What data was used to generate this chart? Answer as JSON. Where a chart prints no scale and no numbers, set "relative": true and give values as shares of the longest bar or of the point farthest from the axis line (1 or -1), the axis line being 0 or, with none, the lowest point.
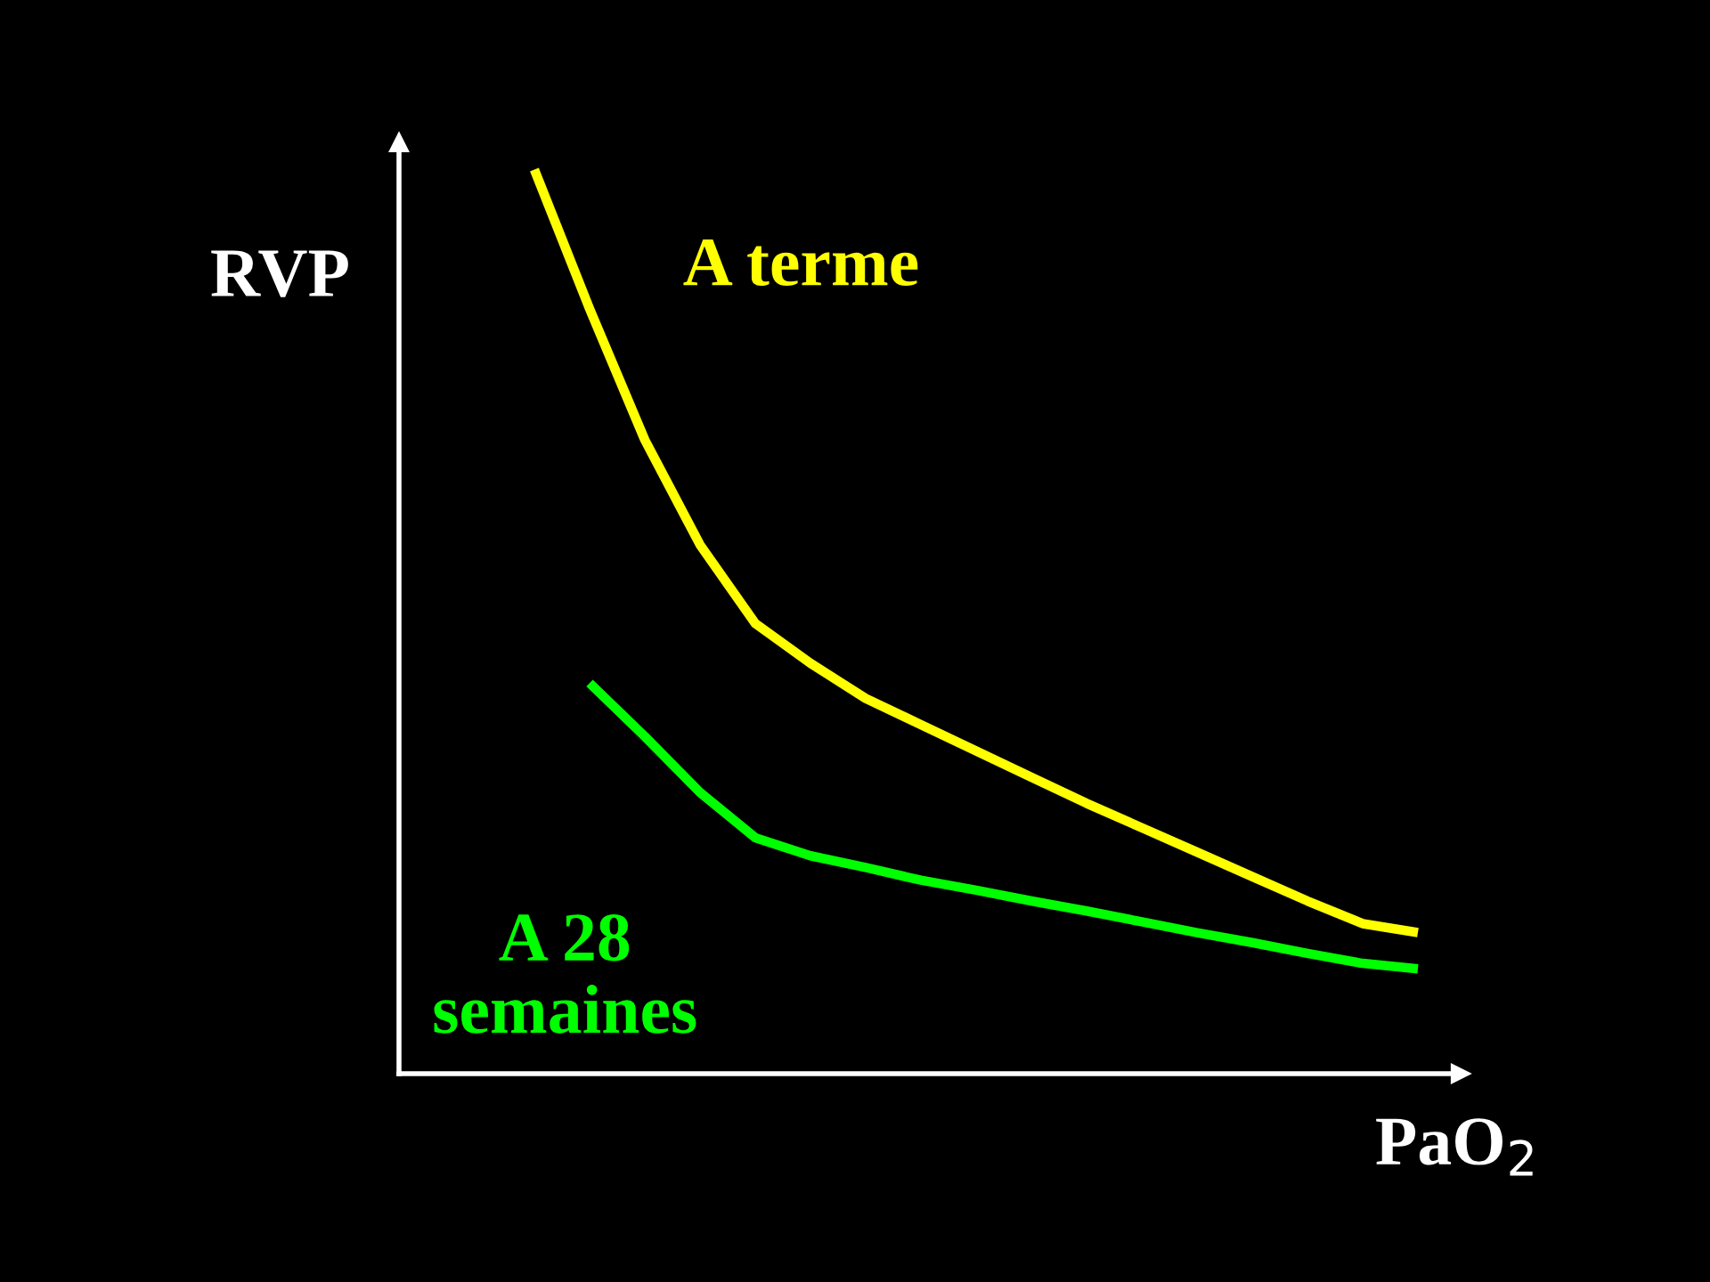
{
  "chart_data": {
    "type": "line",
    "relative": true,
    "xlabel": "PaO$_{2}$",
    "ylabel": "RVP",
    "legend": false,
    "marker": "none",
    "line_style": "solid",
    "categories": [
      null,
      null,
      null,
      null,
      null,
      null,
      null,
      null,
      null,
      null,
      null,
      null,
      null,
      null,
      null,
      null,
      null
    ],
    "series": [
      {
        "name": "A terme",
        "color": "#ffff00",
        "values": [
          1.0,
          0.846,
          0.701,
          0.585,
          0.498,
          0.454,
          0.415,
          0.386,
          0.357,
          0.328,
          0.299,
          0.272,
          0.245,
          0.218,
          0.191,
          0.166,
          0.156
        ]
      },
      {
        "name": "A 28\nsemaines",
        "color": "#00ff00",
        "values": [
          null,
          0.432,
          0.373,
          0.311,
          0.261,
          0.241,
          0.228,
          0.214,
          0.203,
          0.191,
          0.18,
          0.168,
          0.156,
          0.145,
          0.133,
          0.122,
          0.116
        ]
      }
    ]
  }
}
